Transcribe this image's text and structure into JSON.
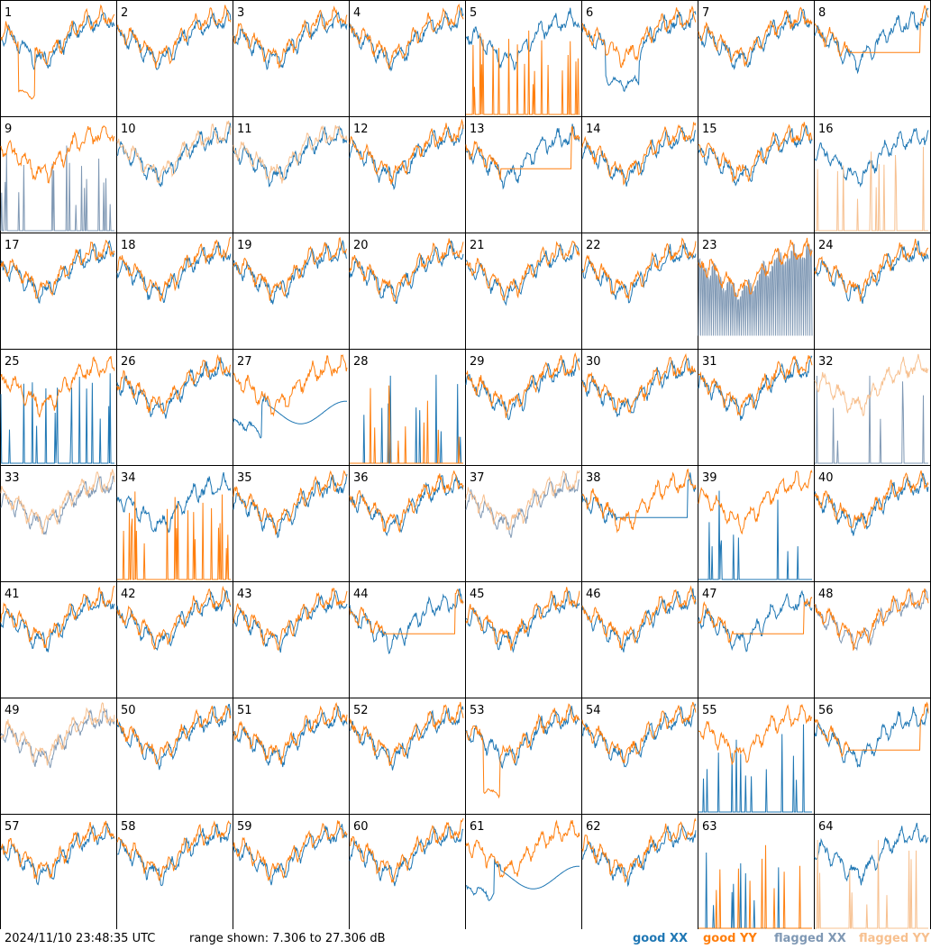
{
  "footer": {
    "timestamp": "2024/11/10 23:48:35 UTC",
    "range_text": "range shown: 7.306 to 27.306 dB"
  },
  "legend": [
    {
      "label": "good XX",
      "color": "#1f77b4"
    },
    {
      "label": "good YY",
      "color": "#ff7f0e"
    },
    {
      "label": "flagged XX",
      "color": "#7f98b4"
    },
    {
      "label": "flagged YY",
      "color": "#f7c08f"
    }
  ],
  "colors": {
    "good_xx": "#1f77b4",
    "good_yy": "#ff7f0e",
    "flagged_xx": "#7f98b4",
    "flagged_yy": "#f7c08f",
    "border": "#000000"
  },
  "chart_data": {
    "type": "line",
    "layout": "8x8 small multiples",
    "ylim": [
      7.306,
      27.306
    ],
    "yunit": "dB",
    "panels": [
      {
        "label": "1",
        "xx": "good",
        "yy": "good",
        "shape": "dropout-yy"
      },
      {
        "label": "2",
        "xx": "good",
        "yy": "good",
        "shape": "normal"
      },
      {
        "label": "3",
        "xx": "good",
        "yy": "good",
        "shape": "normal"
      },
      {
        "label": "4",
        "xx": "good",
        "yy": "good",
        "shape": "normal"
      },
      {
        "label": "5",
        "xx": "good",
        "yy": "good",
        "shape": "spikes-yy"
      },
      {
        "label": "6",
        "xx": "good",
        "yy": "good",
        "shape": "dip-xx"
      },
      {
        "label": "7",
        "xx": "good",
        "yy": "good",
        "shape": "normal"
      },
      {
        "label": "8",
        "xx": "good",
        "yy": "good",
        "shape": "flat-yy"
      },
      {
        "label": "9",
        "xx": "flagged",
        "yy": "good",
        "shape": "spikes-xx"
      },
      {
        "label": "10",
        "xx": "good",
        "yy": "flagged",
        "shape": "normal"
      },
      {
        "label": "11",
        "xx": "good",
        "yy": "flagged",
        "shape": "normal"
      },
      {
        "label": "12",
        "xx": "good",
        "yy": "good",
        "shape": "normal"
      },
      {
        "label": "13",
        "xx": "good",
        "yy": "good",
        "shape": "flat-yy"
      },
      {
        "label": "14",
        "xx": "good",
        "yy": "good",
        "shape": "normal"
      },
      {
        "label": "15",
        "xx": "good",
        "yy": "good",
        "shape": "normal"
      },
      {
        "label": "16",
        "xx": "good",
        "yy": "flagged",
        "shape": "spikes-yy"
      },
      {
        "label": "17",
        "xx": "good",
        "yy": "good",
        "shape": "normal"
      },
      {
        "label": "18",
        "xx": "good",
        "yy": "good",
        "shape": "normal"
      },
      {
        "label": "19",
        "xx": "good",
        "yy": "good",
        "shape": "normal"
      },
      {
        "label": "20",
        "xx": "good",
        "yy": "good",
        "shape": "normal"
      },
      {
        "label": "21",
        "xx": "good",
        "yy": "good",
        "shape": "normal"
      },
      {
        "label": "22",
        "xx": "good",
        "yy": "good",
        "shape": "normal"
      },
      {
        "label": "23",
        "xx": "flagged",
        "yy": "good",
        "shape": "noisy-xx"
      },
      {
        "label": "24",
        "xx": "good",
        "yy": "good",
        "shape": "normal"
      },
      {
        "label": "25",
        "xx": "good",
        "yy": "good",
        "shape": "spikes-xx"
      },
      {
        "label": "26",
        "xx": "good",
        "yy": "good",
        "shape": "normal"
      },
      {
        "label": "27",
        "xx": "good",
        "yy": "good",
        "shape": "dropout-xx"
      },
      {
        "label": "28",
        "xx": "good",
        "yy": "good",
        "shape": "spikes-both"
      },
      {
        "label": "29",
        "xx": "good",
        "yy": "good",
        "shape": "normal"
      },
      {
        "label": "30",
        "xx": "good",
        "yy": "good",
        "shape": "normal"
      },
      {
        "label": "31",
        "xx": "good",
        "yy": "good",
        "shape": "normal"
      },
      {
        "label": "32",
        "xx": "flagged",
        "yy": "flagged",
        "shape": "spikes-xx"
      },
      {
        "label": "33",
        "xx": "flagged",
        "yy": "flagged",
        "shape": "normal"
      },
      {
        "label": "34",
        "xx": "good",
        "yy": "good",
        "shape": "spikes-yy"
      },
      {
        "label": "35",
        "xx": "good",
        "yy": "good",
        "shape": "normal"
      },
      {
        "label": "36",
        "xx": "good",
        "yy": "good",
        "shape": "normal"
      },
      {
        "label": "37",
        "xx": "flagged",
        "yy": "flagged",
        "shape": "normal"
      },
      {
        "label": "38",
        "xx": "good",
        "yy": "good",
        "shape": "flat-xx"
      },
      {
        "label": "39",
        "xx": "good",
        "yy": "good",
        "shape": "spikes-xx"
      },
      {
        "label": "40",
        "xx": "good",
        "yy": "good",
        "shape": "normal"
      },
      {
        "label": "41",
        "xx": "good",
        "yy": "good",
        "shape": "normal"
      },
      {
        "label": "42",
        "xx": "good",
        "yy": "good",
        "shape": "normal"
      },
      {
        "label": "43",
        "xx": "good",
        "yy": "good",
        "shape": "normal"
      },
      {
        "label": "44",
        "xx": "good",
        "yy": "good",
        "shape": "flat-yy"
      },
      {
        "label": "45",
        "xx": "good",
        "yy": "good",
        "shape": "normal"
      },
      {
        "label": "46",
        "xx": "good",
        "yy": "good",
        "shape": "normal"
      },
      {
        "label": "47",
        "xx": "good",
        "yy": "good",
        "shape": "flat-yy"
      },
      {
        "label": "48",
        "xx": "flagged",
        "yy": "good",
        "shape": "normal"
      },
      {
        "label": "49",
        "xx": "flagged",
        "yy": "flagged",
        "shape": "normal"
      },
      {
        "label": "50",
        "xx": "good",
        "yy": "good",
        "shape": "normal"
      },
      {
        "label": "51",
        "xx": "good",
        "yy": "good",
        "shape": "normal"
      },
      {
        "label": "52",
        "xx": "good",
        "yy": "good",
        "shape": "normal"
      },
      {
        "label": "53",
        "xx": "good",
        "yy": "good",
        "shape": "dropout-yy"
      },
      {
        "label": "54",
        "xx": "good",
        "yy": "good",
        "shape": "normal"
      },
      {
        "label": "55",
        "xx": "good",
        "yy": "good",
        "shape": "spikes-xx"
      },
      {
        "label": "56",
        "xx": "good",
        "yy": "good",
        "shape": "flat-yy"
      },
      {
        "label": "57",
        "xx": "good",
        "yy": "good",
        "shape": "normal"
      },
      {
        "label": "58",
        "xx": "good",
        "yy": "good",
        "shape": "normal"
      },
      {
        "label": "59",
        "xx": "good",
        "yy": "good",
        "shape": "normal"
      },
      {
        "label": "60",
        "xx": "good",
        "yy": "good",
        "shape": "normal"
      },
      {
        "label": "61",
        "xx": "good",
        "yy": "good",
        "shape": "dropout-xx"
      },
      {
        "label": "62",
        "xx": "good",
        "yy": "good",
        "shape": "normal"
      },
      {
        "label": "63",
        "xx": "good",
        "yy": "good",
        "shape": "spikes-both"
      },
      {
        "label": "64",
        "xx": "good",
        "yy": "flagged",
        "shape": "spikes-yy"
      }
    ]
  }
}
